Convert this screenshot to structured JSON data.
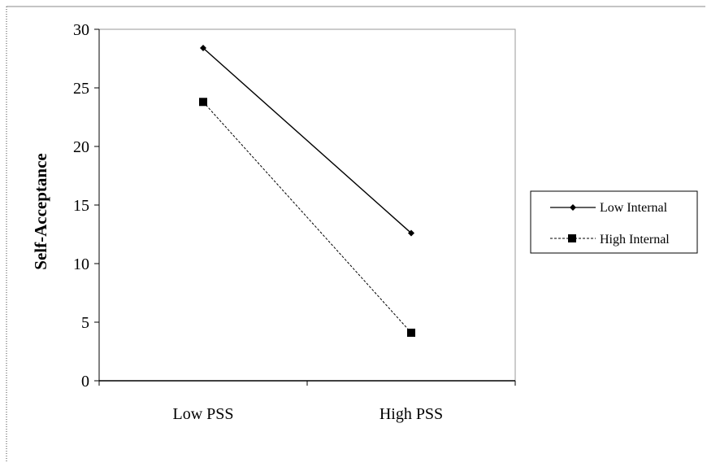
{
  "chart_data": {
    "type": "line",
    "categories": [
      "Low PSS",
      "High PSS"
    ],
    "series": [
      {
        "name": "Low Internal",
        "values": [
          28.4,
          12.6
        ],
        "line_style": "solid",
        "marker": "diamond",
        "color": "#000000"
      },
      {
        "name": "High Internal",
        "values": [
          23.8,
          4.1
        ],
        "line_style": "dashed",
        "marker": "square",
        "color": "#000000"
      }
    ],
    "title": "",
    "xlabel": "",
    "ylabel": "Self-Acceptance",
    "ylim": [
      0,
      30
    ],
    "yticks": [
      "0",
      "5",
      "10",
      "15",
      "20",
      "25",
      "30"
    ],
    "grid": false,
    "legend_position": "right"
  }
}
